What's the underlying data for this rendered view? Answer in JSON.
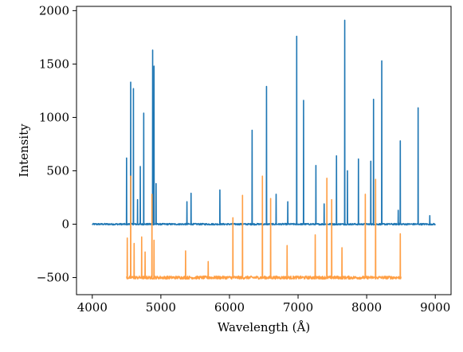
{
  "chart_data": {
    "type": "line",
    "title": "",
    "xlabel": "Wavelength (Å)",
    "ylabel": "Intensity",
    "xlim": [
      3770,
      9230
    ],
    "ylim": [
      -660,
      2040
    ],
    "xticks": [
      4000,
      5000,
      6000,
      7000,
      8000,
      9000
    ],
    "yticks": [
      -500,
      0,
      500,
      1000,
      1500,
      2000
    ],
    "grid": false,
    "legend": "none",
    "series": [
      {
        "color": "#1f77b4",
        "baseline": 0,
        "x_range": [
          4000,
          9000
        ],
        "peaks": [
          [
            4500,
            620
          ],
          [
            4560,
            1330
          ],
          [
            4600,
            1270
          ],
          [
            4660,
            230
          ],
          [
            4700,
            540
          ],
          [
            4750,
            1040
          ],
          [
            4880,
            1630
          ],
          [
            4900,
            1480
          ],
          [
            4930,
            380
          ],
          [
            5380,
            210
          ],
          [
            5440,
            290
          ],
          [
            5860,
            320
          ],
          [
            6330,
            880
          ],
          [
            6540,
            1290
          ],
          [
            6680,
            280
          ],
          [
            6850,
            210
          ],
          [
            6980,
            1760
          ],
          [
            7080,
            1160
          ],
          [
            7260,
            550
          ],
          [
            7380,
            190
          ],
          [
            7560,
            640
          ],
          [
            7680,
            1910
          ],
          [
            7720,
            500
          ],
          [
            7880,
            610
          ],
          [
            8060,
            590
          ],
          [
            8100,
            1170
          ],
          [
            8220,
            1530
          ],
          [
            8460,
            130
          ],
          [
            8490,
            780
          ],
          [
            8750,
            1090
          ],
          [
            8920,
            80
          ]
        ]
      },
      {
        "color": "#ff9f45",
        "baseline": -500,
        "x_range": [
          4500,
          8500
        ],
        "peaks": [
          [
            4510,
            -130
          ],
          [
            4560,
            450
          ],
          [
            4610,
            -180
          ],
          [
            4720,
            -120
          ],
          [
            4770,
            -260
          ],
          [
            4870,
            280
          ],
          [
            4900,
            -150
          ],
          [
            5360,
            -250
          ],
          [
            5690,
            -350
          ],
          [
            6050,
            60
          ],
          [
            6190,
            270
          ],
          [
            6480,
            450
          ],
          [
            6600,
            240
          ],
          [
            6840,
            -200
          ],
          [
            7250,
            -100
          ],
          [
            7420,
            430
          ],
          [
            7490,
            230
          ],
          [
            7640,
            -220
          ],
          [
            7980,
            280
          ],
          [
            8130,
            420
          ],
          [
            8490,
            -90
          ]
        ]
      }
    ]
  }
}
